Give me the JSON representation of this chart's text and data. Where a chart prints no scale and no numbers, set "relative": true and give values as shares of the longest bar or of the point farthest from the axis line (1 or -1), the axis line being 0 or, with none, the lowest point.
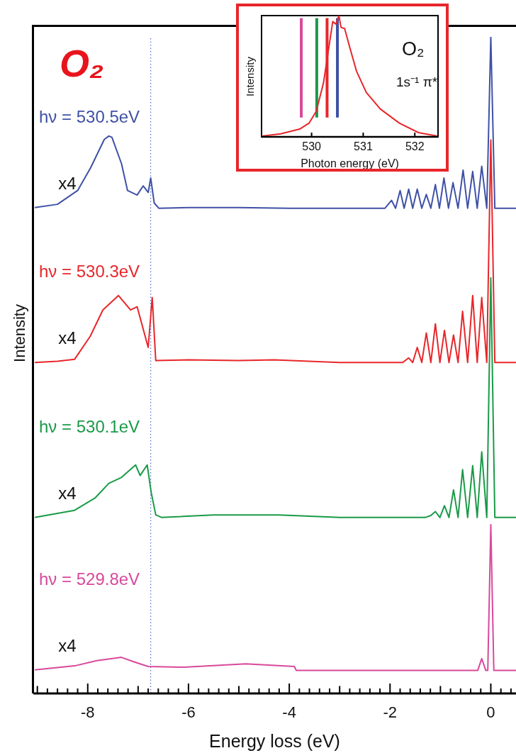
{
  "chart_data": [
    {
      "type": "line",
      "title": "O₂",
      "xlabel": "Energy loss (eV)",
      "ylabel": "Intensity",
      "relative": true,
      "marker": "none",
      "xlim": [
        -9.08,
        0.5
      ],
      "xticks": [
        {
          "value": -9,
          "label": null
        },
        {
          "value": -8.8,
          "label": null
        },
        {
          "value": -8.6,
          "label": null
        },
        {
          "value": -8.4,
          "label": null
        },
        {
          "value": -8.2,
          "label": null
        },
        -8,
        {
          "value": -7.8,
          "label": null
        },
        {
          "value": -7.6,
          "label": null
        },
        {
          "value": -7.4,
          "label": null
        },
        {
          "value": -7.2,
          "label": null
        },
        {
          "value": -7,
          "label": null
        },
        {
          "value": -6.8,
          "label": null
        },
        {
          "value": -6.6,
          "label": null
        },
        {
          "value": -6.4,
          "label": null
        },
        {
          "value": -6.2,
          "label": null
        },
        -6,
        {
          "value": -5.8,
          "label": null
        },
        {
          "value": -5.6,
          "label": null
        },
        {
          "value": -5.4,
          "label": null
        },
        {
          "value": -5.2,
          "label": null
        },
        {
          "value": -5,
          "label": null
        },
        {
          "value": -4.8,
          "label": null
        },
        {
          "value": -4.6,
          "label": null
        },
        {
          "value": -4.4,
          "label": null
        },
        {
          "value": -4.2,
          "label": null
        },
        -4,
        {
          "value": -3.8,
          "label": null
        },
        {
          "value": -3.6,
          "label": null
        },
        {
          "value": -3.4,
          "label": null
        },
        {
          "value": -3.2,
          "label": null
        },
        {
          "value": -3,
          "label": null
        },
        {
          "value": -2.8,
          "label": null
        },
        {
          "value": -2.6,
          "label": null
        },
        {
          "value": -2.4,
          "label": null
        },
        {
          "value": -2.2,
          "label": null
        },
        -2,
        {
          "value": -1.8,
          "label": null
        },
        {
          "value": -1.6,
          "label": null
        },
        {
          "value": -1.4,
          "label": null
        },
        {
          "value": -1.2,
          "label": null
        },
        {
          "value": -1,
          "label": null
        },
        {
          "value": -0.8,
          "label": null
        },
        {
          "value": -0.6,
          "label": null
        },
        {
          "value": -0.4,
          "label": null
        },
        {
          "value": -0.2,
          "label": null
        },
        0,
        {
          "value": 0.2,
          "label": null
        },
        {
          "value": 0.4,
          "label": null
        }
      ],
      "series": [
        {
          "name": "hν = 530.5eV",
          "color": "#3f51a5",
          "x": [
            -9.05,
            -8.6,
            -8.2,
            -7.94,
            -7.67,
            -7.58,
            -7.52,
            -7.33,
            -7.21,
            -7.02,
            -6.9,
            -6.8,
            -6.75,
            -6.68,
            -6.59,
            -6.0,
            -5.0,
            -4.0,
            -3.0,
            -2.1,
            -1.97,
            -1.89,
            -1.8,
            -1.72,
            -1.63,
            -1.55,
            -1.46,
            -1.37,
            -1.28,
            -1.19,
            -1.1,
            -1.02,
            -0.93,
            -0.84,
            -0.75,
            -0.65,
            -0.55,
            -0.46,
            -0.36,
            -0.27,
            -0.18,
            -0.08,
            0,
            0.08,
            0.5
          ],
          "values": [
            0.74,
            0.745,
            0.766,
            0.801,
            0.844,
            0.849,
            0.847,
            0.807,
            0.766,
            0.759,
            0.773,
            0.763,
            0.785,
            0.747,
            0.739,
            0.74,
            0.74,
            0.739,
            0.739,
            0.739,
            0.751,
            0.739,
            0.766,
            0.739,
            0.768,
            0.739,
            0.768,
            0.739,
            0.76,
            0.739,
            0.775,
            0.739,
            0.785,
            0.739,
            0.778,
            0.739,
            0.797,
            0.739,
            0.795,
            0.739,
            0.803,
            0.739,
            1,
            0.739,
            0.739
          ]
        },
        {
          "name": "hν = 530.3eV",
          "color": "#e8262a",
          "x": [
            -9.05,
            -8.6,
            -8.26,
            -7.95,
            -7.7,
            -7.39,
            -7.15,
            -7.02,
            -6.8,
            -6.72,
            -6.65,
            -6.0,
            -5.0,
            -4.3,
            -3.0,
            -1.75,
            -1.63,
            -1.55,
            -1.46,
            -1.37,
            -1.28,
            -1.19,
            -1.1,
            -1.01,
            -0.92,
            -0.83,
            -0.74,
            -0.65,
            -0.56,
            -0.46,
            -0.36,
            -0.27,
            -0.18,
            -0.08,
            0,
            0.08,
            0.5
          ],
          "values": [
            0.504,
            0.506,
            0.509,
            0.544,
            0.584,
            0.606,
            0.584,
            0.589,
            0.527,
            0.603,
            0.507,
            0.508,
            0.507,
            0.508,
            0.504,
            0.504,
            0.511,
            0.504,
            0.527,
            0.504,
            0.549,
            0.504,
            0.563,
            0.504,
            0.553,
            0.504,
            0.546,
            0.504,
            0.582,
            0.504,
            0.606,
            0.504,
            0.603,
            0.504,
            0.843,
            0.504,
            0.504
          ]
        },
        {
          "name": "hν = 530.1eV",
          "color": "#1a9a48",
          "x": [
            -9.05,
            -8.26,
            -7.85,
            -7.58,
            -7.33,
            -7.05,
            -6.96,
            -6.82,
            -6.74,
            -6.65,
            -6.53,
            -5.5,
            -4.21,
            -3.0,
            -1.3,
            -1.19,
            -1.1,
            -1.01,
            -0.92,
            -0.83,
            -0.74,
            -0.65,
            -0.56,
            -0.46,
            -0.36,
            -0.27,
            -0.18,
            -0.08,
            0,
            0.08,
            0.5
          ],
          "values": [
            0.268,
            0.279,
            0.298,
            0.32,
            0.329,
            0.348,
            0.332,
            0.348,
            0.306,
            0.272,
            0.268,
            0.272,
            0.272,
            0.268,
            0.268,
            0.271,
            0.277,
            0.268,
            0.286,
            0.268,
            0.31,
            0.268,
            0.341,
            0.268,
            0.347,
            0.268,
            0.368,
            0.268,
            0.633,
            0.268,
            0.268
          ]
        },
        {
          "name": "hν = 529.8eV",
          "color": "#d8499b",
          "x": [
            -9.05,
            -8.26,
            -7.82,
            -7.33,
            -7.08,
            -6.8,
            -6.09,
            -4.86,
            -3.9,
            -3.86,
            -1.0,
            -0.26,
            -0.18,
            -0.1,
            -0.06,
            0,
            0.06,
            0.5
          ],
          "values": [
            0.036,
            0.042,
            0.05,
            0.055,
            0.048,
            0.041,
            0.04,
            0.045,
            0.041,
            0.035,
            0.035,
            0.035,
            0.053,
            0.035,
            0.035,
            0.257,
            0.035,
            0.035
          ]
        }
      ],
      "ref_lines": [
        {
          "axis": "x",
          "value": -6.75,
          "color": "#4a6fd0",
          "line_style": "dotted"
        }
      ],
      "annotations": [
        "x4",
        "x4",
        "x4",
        "x4"
      ]
    },
    {
      "type": "line",
      "xlabel": "Photon energy (eV)",
      "ylabel": "Intensity",
      "relative": true,
      "marker": "none",
      "xlim": [
        529.03,
        532.45
      ],
      "xticks": [
        530,
        531,
        532
      ],
      "series": [
        {
          "color": "#e8262a",
          "x": [
            529.03,
            529.4,
            529.77,
            529.95,
            530.09,
            530.23,
            530.32,
            530.41,
            530.47,
            530.53,
            530.57,
            530.64,
            530.74,
            530.87,
            531.06,
            531.33,
            531.7,
            532.07,
            532.44
          ],
          "values": [
            0.006,
            0.025,
            0.064,
            0.113,
            0.211,
            0.444,
            0.698,
            0.951,
            0.93,
            1,
            0.903,
            0.893,
            0.737,
            0.542,
            0.366,
            0.23,
            0.113,
            0.035,
            0.006
          ]
        }
      ],
      "ref_lines": [
        {
          "axis": "x",
          "value": 529.8,
          "color": "#d8499b"
        },
        {
          "axis": "x",
          "value": 530.1,
          "color": "#1a9a48"
        },
        {
          "axis": "x",
          "value": 530.3,
          "color": "#e8262a"
        },
        {
          "axis": "x",
          "value": 530.5,
          "color": "#3f51a5"
        }
      ],
      "annotations": [
        "O₂",
        "1s⁻¹ π*"
      ]
    }
  ]
}
